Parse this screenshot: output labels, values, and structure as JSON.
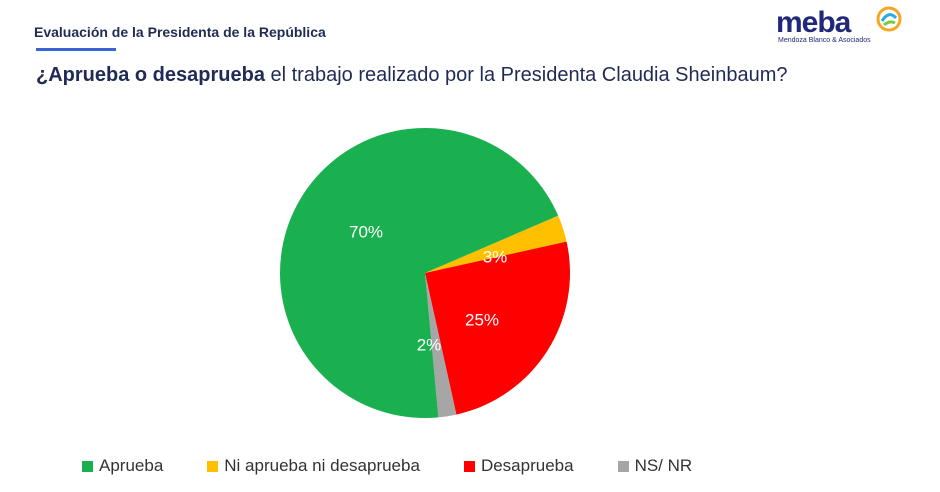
{
  "header": {
    "section_title": "Evaluación de la Presidenta de la República",
    "question_bold": "¿Aprueba o desaprueba",
    "question_rest": " el trabajo realizado por la Presidenta Claudia Sheinbaum?"
  },
  "logo": {
    "word": "meba",
    "subtitle": "Mendoza Blanco & Asociados"
  },
  "chart_data": {
    "type": "pie",
    "title": "¿Aprueba o desaprueba el trabajo realizado por la Presidenta Claudia Sheinbaum?",
    "categories": [
      "Aprueba",
      "Ni aprueba ni desaprueba",
      "Desaprueba",
      "NS/ NR"
    ],
    "values": [
      70,
      3,
      25,
      2
    ],
    "data_labels": [
      "70%",
      "3%",
      "25%",
      "2%"
    ],
    "colors": [
      "#1ab04f",
      "#ffc000",
      "#ff0000",
      "#a6a6a6"
    ],
    "legend_position": "bottom"
  }
}
